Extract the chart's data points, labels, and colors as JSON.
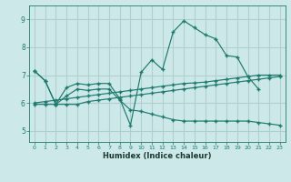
{
  "xlabel": "Humidex (Indice chaleur)",
  "bg_color": "#cce8e8",
  "grid_color": "#b0d0d0",
  "line_color": "#1e7a6e",
  "xlim": [
    -0.5,
    23.5
  ],
  "ylim": [
    4.6,
    9.5
  ],
  "yticks": [
    5,
    6,
    7,
    8,
    9
  ],
  "xticks": [
    0,
    1,
    2,
    3,
    4,
    5,
    6,
    7,
    8,
    9,
    10,
    11,
    12,
    13,
    14,
    15,
    16,
    17,
    18,
    19,
    20,
    21,
    22,
    23
  ],
  "line1_x": [
    0,
    1,
    2,
    3,
    4,
    5,
    6,
    7,
    8,
    9,
    10,
    11,
    12,
    13,
    14,
    15,
    16,
    17,
    18,
    19,
    20,
    21
  ],
  "line1_y": [
    7.15,
    6.8,
    5.95,
    6.55,
    6.7,
    6.65,
    6.7,
    6.7,
    6.15,
    5.2,
    7.1,
    7.55,
    7.2,
    8.55,
    8.95,
    8.7,
    8.45,
    8.3,
    7.7,
    7.65,
    6.95,
    6.5
  ],
  "line2_x": [
    0,
    1,
    2,
    3,
    4,
    5,
    6,
    7,
    8,
    9,
    10,
    11,
    12,
    13,
    14,
    15,
    16,
    17,
    18,
    19,
    20,
    21,
    22,
    23
  ],
  "line2_y": [
    6.0,
    6.05,
    6.1,
    6.15,
    6.2,
    6.25,
    6.3,
    6.35,
    6.4,
    6.45,
    6.5,
    6.55,
    6.6,
    6.65,
    6.7,
    6.72,
    6.75,
    6.8,
    6.85,
    6.9,
    6.95,
    7.0,
    7.0,
    7.0
  ],
  "line3_x": [
    0,
    1,
    2,
    3,
    4,
    5,
    6,
    7,
    8,
    9,
    10,
    11,
    12,
    13,
    14,
    15,
    16,
    17,
    18,
    19,
    20,
    21,
    22,
    23
  ],
  "line3_y": [
    7.15,
    6.8,
    5.95,
    6.25,
    6.5,
    6.45,
    6.5,
    6.5,
    6.1,
    5.75,
    5.7,
    5.6,
    5.5,
    5.4,
    5.35,
    5.35,
    5.35,
    5.35,
    5.35,
    5.35,
    5.35,
    5.3,
    5.25,
    5.2
  ],
  "line4_x": [
    0,
    1,
    2,
    3,
    4,
    5,
    6,
    7,
    8,
    9,
    10,
    11,
    12,
    13,
    14,
    15,
    16,
    17,
    18,
    19,
    20,
    21,
    22,
    23
  ],
  "line4_y": [
    5.95,
    5.95,
    5.95,
    5.95,
    5.95,
    6.05,
    6.1,
    6.15,
    6.2,
    6.25,
    6.3,
    6.35,
    6.4,
    6.45,
    6.5,
    6.55,
    6.6,
    6.65,
    6.7,
    6.75,
    6.8,
    6.85,
    6.9,
    6.95
  ]
}
